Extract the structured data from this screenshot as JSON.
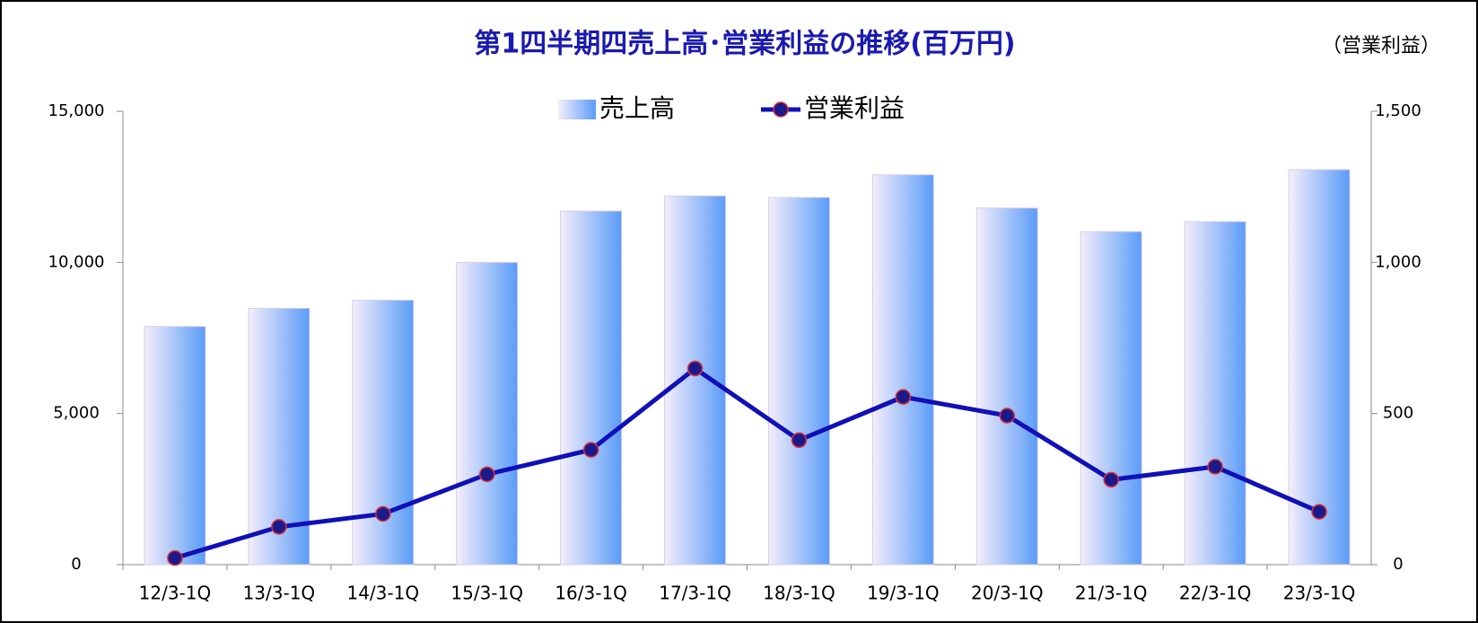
{
  "chart_data": {
    "type": "bar_line",
    "title": "第1四半期四売上高･営業利益の推移(百万円)",
    "y2_label": "（営業利益）",
    "categories": [
      "12/3-1Q",
      "13/3-1Q",
      "14/3-1Q",
      "15/3-1Q",
      "16/3-1Q",
      "17/3-1Q",
      "18/3-1Q",
      "19/3-1Q",
      "20/3-1Q",
      "21/3-1Q",
      "22/3-1Q",
      "23/3-1Q"
    ],
    "series": [
      {
        "name": "売上高",
        "type": "bar",
        "color": "#5a9cf8",
        "values": [
          7880,
          8480,
          8750,
          10000,
          11700,
          12200,
          12150,
          12900,
          11800,
          11020,
          11350,
          13070
        ]
      },
      {
        "name": "営業利益",
        "type": "line",
        "axis": "y2",
        "color": "#1010b8",
        "marker_color": "#1a1a8c",
        "marker_edge": "#e03030",
        "values": [
          22,
          125,
          168,
          299,
          380,
          649,
          412,
          555,
          493,
          281,
          324,
          175
        ]
      }
    ],
    "ylim": [
      0,
      15000
    ],
    "yticks": [
      0,
      {
        "value": 5000,
        "label": "5,000"
      },
      {
        "value": 10000,
        "label": "10,000"
      },
      {
        "value": 15000,
        "label": "15,000"
      }
    ],
    "y2lim": [
      0,
      1500
    ],
    "y2ticks": [
      0,
      500,
      {
        "value": 1000,
        "label": "1,000"
      },
      {
        "value": 1500,
        "label": "1,500"
      }
    ],
    "legend": "top"
  }
}
